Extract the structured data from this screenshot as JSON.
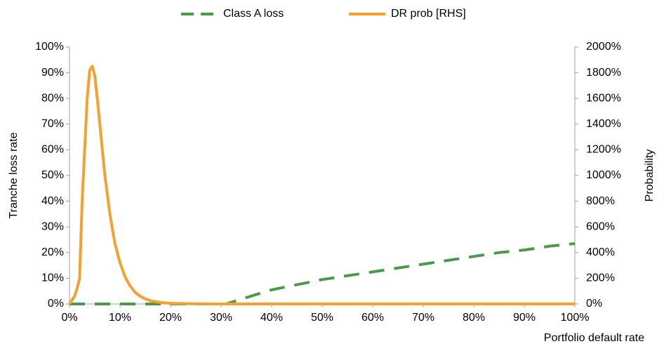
{
  "chart_data": {
    "type": "line",
    "x_label": "Portfolio default rate",
    "y_label": "Tranche loss rate",
    "y2_label": "Probability",
    "xlim": [
      0,
      100
    ],
    "ylim": [
      0,
      100
    ],
    "y2lim": [
      0,
      2000
    ],
    "xticks": [
      {
        "value": 0,
        "label": "0%"
      },
      {
        "value": 10,
        "label": "10%"
      },
      {
        "value": 20,
        "label": "20%"
      },
      {
        "value": 30,
        "label": "30%"
      },
      {
        "value": 40,
        "label": "40%"
      },
      {
        "value": 50,
        "label": "50%"
      },
      {
        "value": 60,
        "label": "60%"
      },
      {
        "value": 70,
        "label": "70%"
      },
      {
        "value": 80,
        "label": "80%"
      },
      {
        "value": 90,
        "label": "90%"
      },
      {
        "value": 100,
        "label": "100%"
      }
    ],
    "yticks": [
      {
        "value": 0,
        "label": "0%"
      },
      {
        "value": 10,
        "label": "10%"
      },
      {
        "value": 20,
        "label": "20%"
      },
      {
        "value": 30,
        "label": "30%"
      },
      {
        "value": 40,
        "label": "40%"
      },
      {
        "value": 50,
        "label": "50%"
      },
      {
        "value": 60,
        "label": "60%"
      },
      {
        "value": 70,
        "label": "70%"
      },
      {
        "value": 80,
        "label": "80%"
      },
      {
        "value": 90,
        "label": "90%"
      },
      {
        "value": 100,
        "label": "100%"
      }
    ],
    "y2ticks": [
      {
        "value": 0,
        "label": "0%"
      },
      {
        "value": 200,
        "label": "200%"
      },
      {
        "value": 400,
        "label": "400%"
      },
      {
        "value": 600,
        "label": "600%"
      },
      {
        "value": 800,
        "label": "800%"
      },
      {
        "value": 1000,
        "label": "1000%"
      },
      {
        "value": 1200,
        "label": "1200%"
      },
      {
        "value": 1400,
        "label": "1400%"
      },
      {
        "value": 1600,
        "label": "1600%"
      },
      {
        "value": 1800,
        "label": "1800%"
      },
      {
        "value": 2000,
        "label": "2000%"
      }
    ],
    "grid": false,
    "legend": "top",
    "series": [
      {
        "name": "Class A loss",
        "color": "#4a9a4a",
        "dashed": true,
        "x": [
          0,
          31,
          35,
          40,
          45,
          50,
          55,
          60,
          65,
          70,
          75,
          80,
          85,
          90,
          95,
          100
        ],
        "values": [
          0,
          0,
          2.5,
          5.5,
          7.5,
          9.5,
          11,
          12.5,
          14,
          15.5,
          17,
          18.5,
          20,
          21,
          22.5,
          23.5
        ]
      },
      {
        "name": "DR prob [RHS]",
        "color": "#f5a030",
        "dashed": false,
        "axis": "y2",
        "x": [
          0,
          1,
          1.5,
          2,
          2.5,
          3,
          3.5,
          4,
          4.5,
          5,
          5.5,
          6,
          6.5,
          7,
          7.5,
          8,
          8.5,
          9,
          10,
          11,
          12,
          13,
          14,
          15,
          16,
          18,
          20,
          25,
          30,
          100
        ],
        "values": [
          0,
          60,
          120,
          200,
          800,
          1200,
          1600,
          1820,
          1850,
          1780,
          1600,
          1400,
          1200,
          1000,
          850,
          700,
          580,
          470,
          320,
          210,
          140,
          90,
          60,
          40,
          25,
          12,
          5,
          1,
          0,
          0
        ]
      }
    ]
  }
}
